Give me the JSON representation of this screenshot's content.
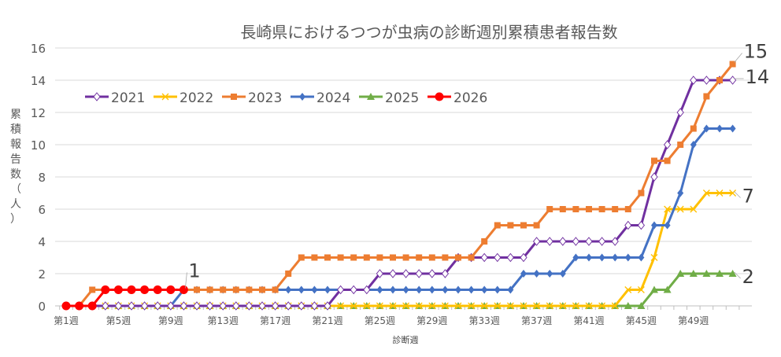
{
  "chart_data": {
    "type": "line",
    "title": "長崎県におけるつつが虫病の診断週別累積患者報告数",
    "xlabel": "診断週",
    "ylabel": "累積報告数（人）",
    "ylim": [
      0,
      16
    ],
    "yticks": [
      0,
      2,
      4,
      6,
      8,
      10,
      12,
      14,
      16
    ],
    "grid": true,
    "legend_position": "top-left",
    "x_tick_labels": [
      "第1週",
      "第5週",
      "第9週",
      "第13週",
      "第17週",
      "第21週",
      "第25週",
      "第29週",
      "第33週",
      "第37週",
      "第41週",
      "第45週",
      "第49週"
    ],
    "x_tick_weeks": [
      1,
      5,
      9,
      13,
      17,
      21,
      25,
      29,
      33,
      37,
      41,
      45,
      49
    ],
    "weeks": 52,
    "series": [
      {
        "name": "2021",
        "color": "#7030A0",
        "marker": "diamond-open",
        "values": [
          0,
          0,
          0,
          0,
          0,
          0,
          0,
          0,
          0,
          0,
          0,
          0,
          0,
          0,
          0,
          0,
          0,
          0,
          0,
          0,
          0,
          1,
          1,
          1,
          2,
          2,
          2,
          2,
          2,
          2,
          3,
          3,
          3,
          3,
          3,
          3,
          4,
          4,
          4,
          4,
          4,
          4,
          4,
          5,
          5,
          8,
          10,
          12,
          14,
          14,
          14,
          14
        ]
      },
      {
        "name": "2022",
        "color": "#FFC000",
        "marker": "x",
        "values": [
          null,
          null,
          null,
          0,
          0,
          0,
          0,
          0,
          0,
          0,
          0,
          0,
          0,
          0,
          0,
          0,
          0,
          0,
          0,
          0,
          0,
          0,
          0,
          0,
          0,
          0,
          0,
          0,
          0,
          0,
          0,
          0,
          0,
          0,
          0,
          0,
          0,
          0,
          0,
          0,
          0,
          0,
          0,
          1,
          1,
          3,
          6,
          6,
          6,
          7,
          7,
          7
        ]
      },
      {
        "name": "2023",
        "color": "#ED7D31",
        "marker": "square",
        "values": [
          0,
          0,
          1,
          1,
          1,
          1,
          1,
          1,
          1,
          1,
          1,
          1,
          1,
          1,
          1,
          1,
          1,
          2,
          3,
          3,
          3,
          3,
          3,
          3,
          3,
          3,
          3,
          3,
          3,
          3,
          3,
          3,
          4,
          5,
          5,
          5,
          5,
          6,
          6,
          6,
          6,
          6,
          6,
          6,
          7,
          9,
          9,
          10,
          11,
          13,
          14,
          15
        ]
      },
      {
        "name": "2024",
        "color": "#4472C4",
        "marker": "diamond",
        "values": [
          0,
          0,
          0,
          0,
          0,
          0,
          0,
          0,
          0,
          1,
          1,
          1,
          1,
          1,
          1,
          1,
          1,
          1,
          1,
          1,
          1,
          1,
          1,
          1,
          1,
          1,
          1,
          1,
          1,
          1,
          1,
          1,
          1,
          1,
          1,
          2,
          2,
          2,
          2,
          3,
          3,
          3,
          3,
          3,
          3,
          5,
          5,
          7,
          10,
          11,
          11,
          11
        ]
      },
      {
        "name": "2025",
        "color": "#70AD47",
        "marker": "triangle",
        "values": [
          null,
          null,
          null,
          0,
          0,
          0,
          0,
          0,
          0,
          0,
          0,
          0,
          0,
          0,
          0,
          0,
          0,
          0,
          0,
          0,
          0,
          0,
          0,
          0,
          0,
          0,
          0,
          0,
          0,
          0,
          0,
          0,
          0,
          0,
          0,
          0,
          0,
          0,
          0,
          0,
          0,
          0,
          0,
          0,
          0,
          1,
          1,
          2,
          2,
          2,
          2,
          2
        ]
      },
      {
        "name": "2026",
        "color": "#FF0000",
        "marker": "circle",
        "values": [
          0,
          0,
          0,
          1,
          1,
          1,
          1,
          1,
          1,
          1
        ]
      }
    ],
    "data_labels": [
      {
        "series": "2026",
        "week": 10,
        "text": "1"
      },
      {
        "series": "2023",
        "week": 52,
        "text": "15"
      },
      {
        "series": "2021",
        "week": 52,
        "text": "14"
      },
      {
        "series": "2022",
        "week": 52,
        "text": "7"
      },
      {
        "series": "2025",
        "week": 52,
        "text": "2"
      }
    ]
  }
}
